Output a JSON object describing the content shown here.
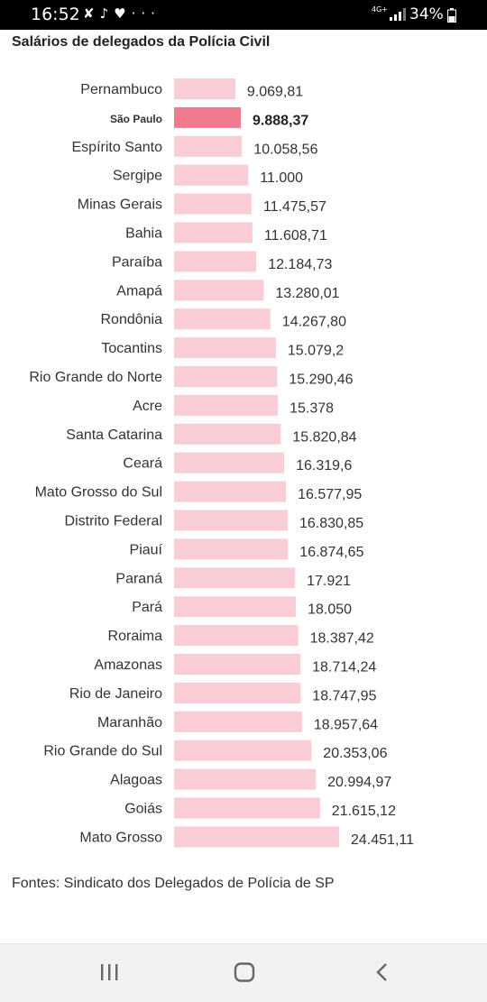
{
  "status_bar": {
    "time": "16:52",
    "network": "4G+",
    "battery": "34%",
    "icons": [
      "missed-call-icon",
      "tiktok-icon",
      "heart-icon",
      "more-icon"
    ]
  },
  "title": "Salários de delegados da Polícia Civil",
  "source": "Fontes: Sindicato dos Delegados de Polícia de SP",
  "colors": {
    "bar": "#f9ccd6",
    "highlight": "#f07a8e",
    "text": "#333333"
  },
  "chart_data": {
    "type": "bar",
    "orientation": "horizontal",
    "title": "Salários de delegados da Polícia Civil",
    "highlight": "São Paulo",
    "categories": [
      "Pernambuco",
      "São Paulo",
      "Espírito Santo",
      "Sergipe",
      "Minas Gerais",
      "Bahia",
      "Paraíba",
      "Amapá",
      "Rondônia",
      "Tocantins",
      "Rio Grande do Norte",
      "Acre",
      "Santa Catarina",
      "Ceará",
      "Mato Grosso do Sul",
      "Distrito Federal",
      "Piauí",
      "Paraná",
      "Pará",
      "Roraima",
      "Amazonas",
      "Rio de Janeiro",
      "Maranhão",
      "Rio Grande do Sul",
      "Alagoas",
      "Goiás",
      "Mato Grosso"
    ],
    "values": [
      9069.81,
      9888.37,
      10058.56,
      11000,
      11475.57,
      11608.71,
      12184.73,
      13280.01,
      14267.8,
      15079.2,
      15290.46,
      15378,
      15820.84,
      16319.6,
      16577.95,
      16830.85,
      16874.65,
      17921,
      18050,
      18387.42,
      18714.24,
      18747.95,
      18957.64,
      20353.06,
      20994.97,
      21615.12,
      24451.11
    ],
    "labels": [
      "9.069,81",
      "9.888,37",
      "10.058,56",
      "11.000",
      "11.475,57",
      "11.608,71",
      "12.184,73",
      "13.280,01",
      "14.267,80",
      "15.079,2",
      "15.290,46",
      "15.378",
      "15.820,84",
      "16.319,6",
      "16.577,95",
      "16.830,85",
      "16.874,65",
      "17.921",
      "18.050",
      "18.387,42",
      "18.714,24",
      "18.747,95",
      "18.957,64",
      "20.353,06",
      "20.994,97",
      "21.615,12",
      "24.451,11"
    ],
    "xlim": [
      0,
      24451.11
    ],
    "grid": false,
    "legend": "none"
  },
  "nav": {
    "buttons": [
      {
        "name": "recent-apps-button",
        "icon": "recent-apps-icon"
      },
      {
        "name": "home-button",
        "icon": "home-icon"
      },
      {
        "name": "back-button",
        "icon": "back-icon"
      }
    ]
  }
}
